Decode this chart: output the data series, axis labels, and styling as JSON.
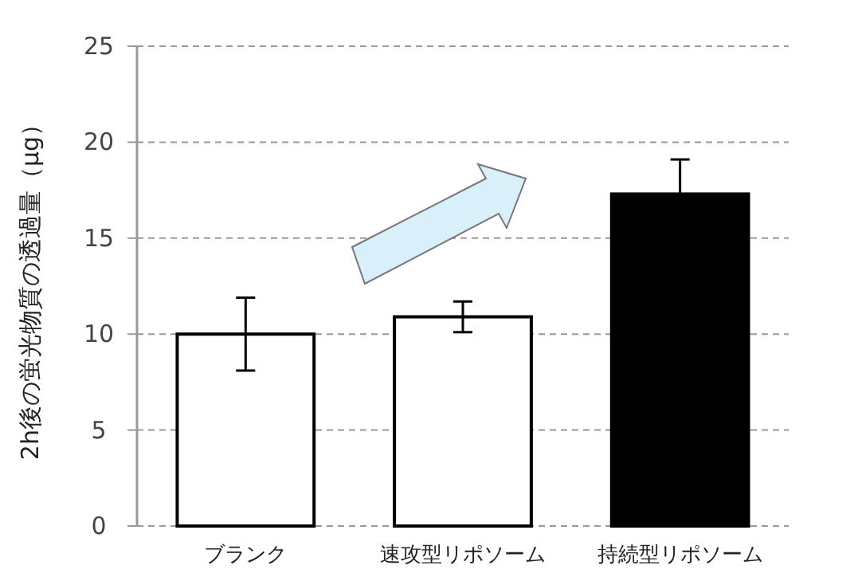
{
  "chart_data": {
    "type": "bar",
    "ylabel": "2h後の蛍光物質の透過量（μg）",
    "categories": [
      "ブランク",
      "速攻型リポソーム",
      "持続型リポソーム"
    ],
    "values": [
      10.0,
      10.9,
      17.3
    ],
    "errors": [
      1.9,
      0.8,
      1.8
    ],
    "colors": [
      "#ffffff",
      "#ffffff",
      "#000000"
    ],
    "ylim": [
      0,
      25
    ],
    "yticks": [
      0,
      5,
      10,
      15,
      20,
      25
    ],
    "grid": "y"
  }
}
